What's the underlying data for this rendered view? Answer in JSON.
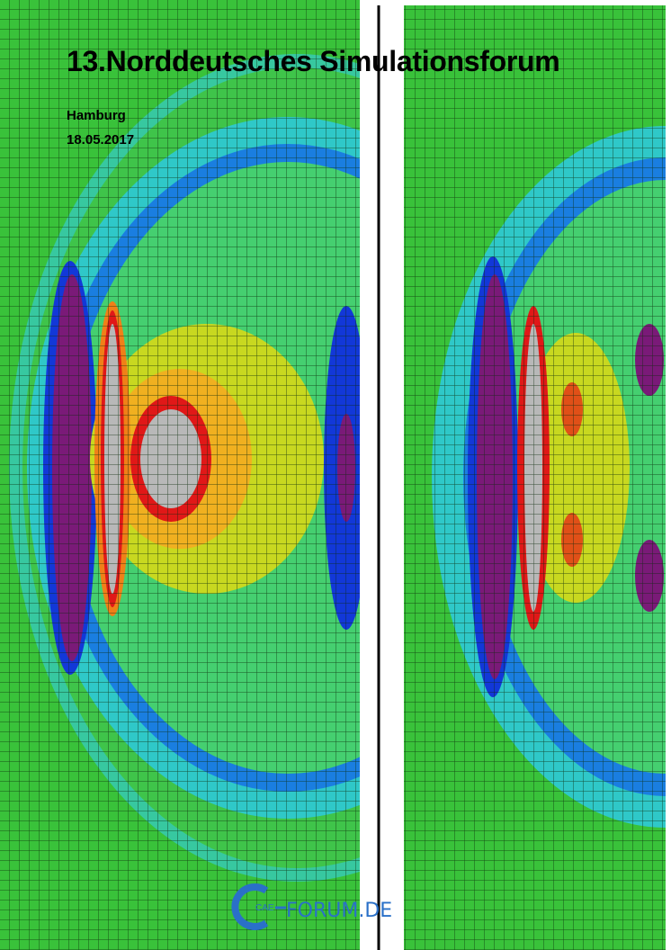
{
  "header": {
    "title": "13.Norddeutsches Simulationsforum",
    "location": "Hamburg",
    "date": "18.05.2017"
  },
  "logo": {
    "mark": "CAE",
    "text": "FORUM.DE"
  }
}
